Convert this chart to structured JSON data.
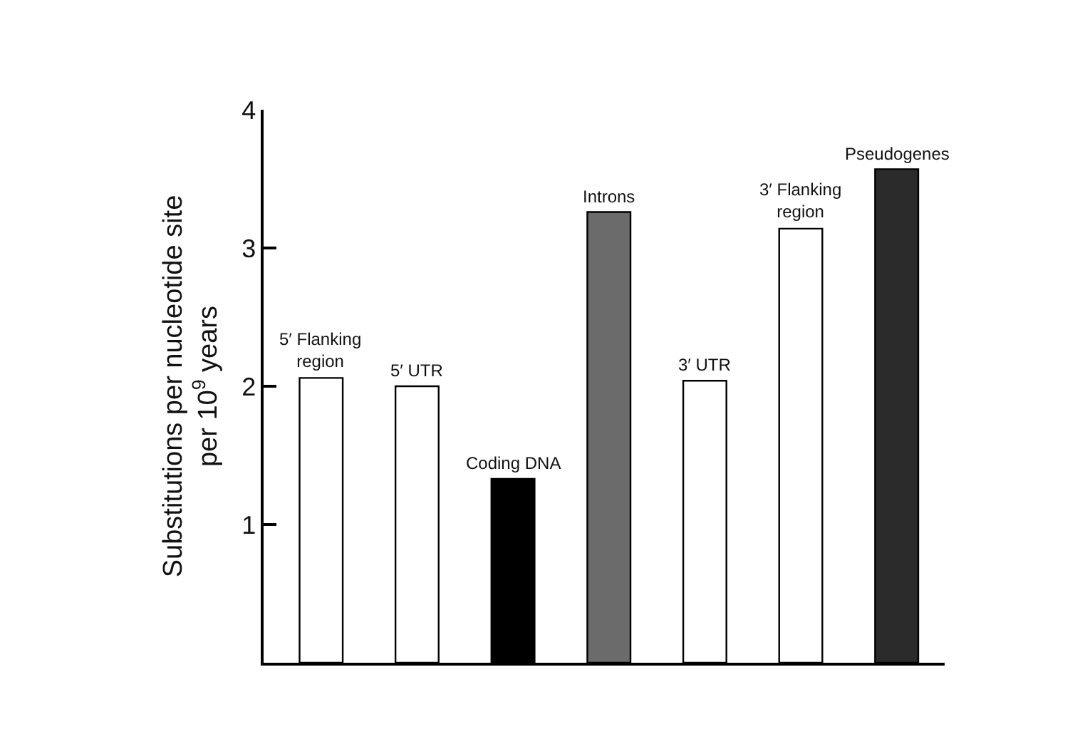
{
  "chart_data": {
    "type": "bar",
    "ylabel": "Substitutions per nucleotide site per 10$^{9}$ years",
    "categories": [
      "5′ Flanking region",
      "5′ UTR",
      "Coding DNA",
      "Introns",
      "3′ UTR",
      "3′ Flanking region",
      "Pseudogenes"
    ],
    "values": [
      2.06,
      2.0,
      1.33,
      3.26,
      2.04,
      3.14,
      3.57
    ],
    "colors": [
      "#ffffff",
      "#ffffff",
      "#000000",
      "#6b6b6b",
      "#ffffff",
      "#ffffff",
      "#2b2b2b"
    ],
    "ylim": [
      0,
      4
    ],
    "yticks": [
      1,
      2,
      3,
      4
    ],
    "tick_labels": "y"
  }
}
